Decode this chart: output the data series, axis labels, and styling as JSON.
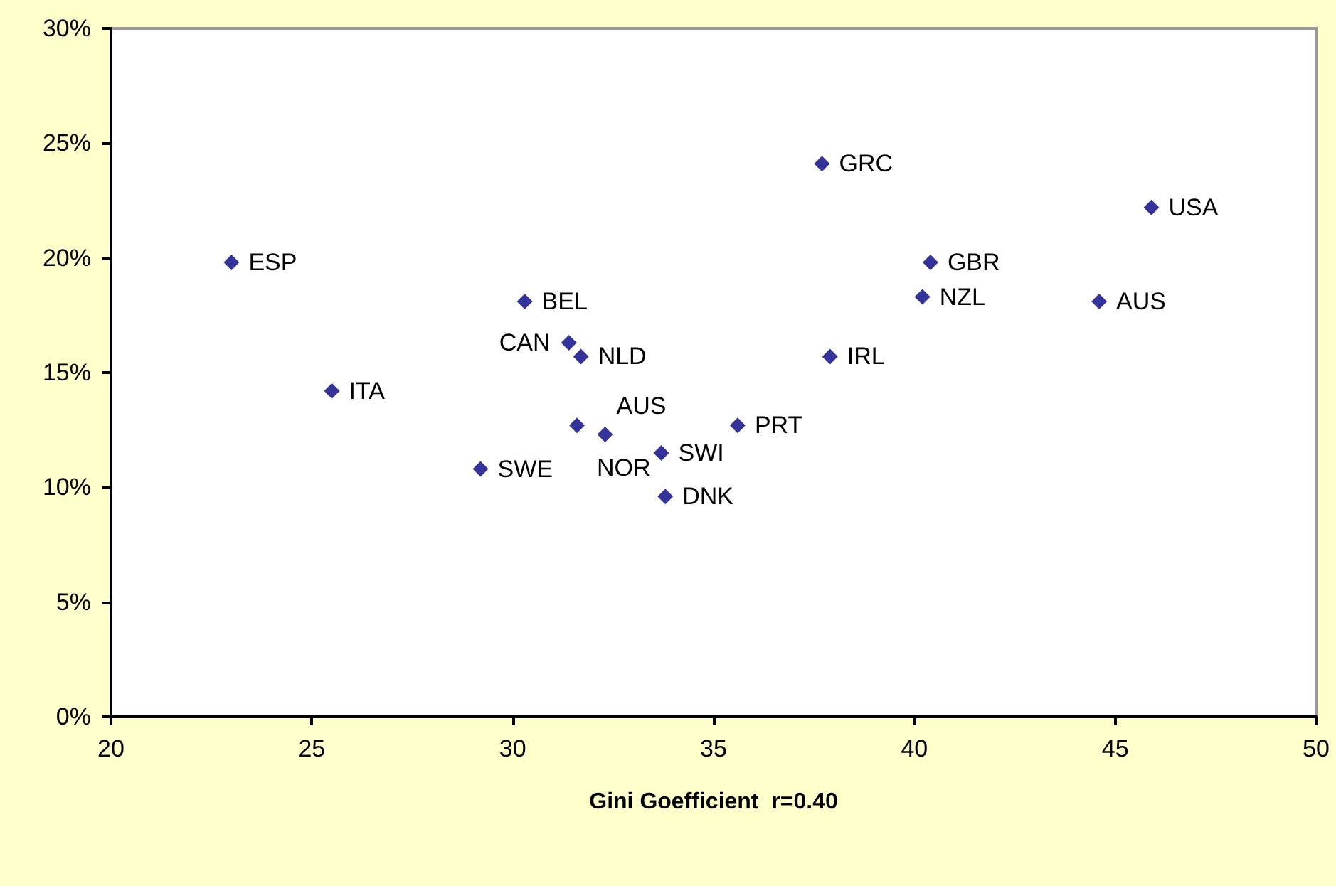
{
  "chart_data": {
    "type": "scatter",
    "xlabel": "Gini Goefficient  r=0.40",
    "x": [
      23.0,
      25.5,
      29.2,
      30.3,
      31.4,
      31.7,
      31.6,
      32.3,
      33.7,
      33.8,
      35.6,
      37.9,
      37.7,
      40.4,
      40.2,
      44.6,
      45.9
    ],
    "values": [
      19.8,
      14.2,
      10.8,
      18.1,
      16.3,
      15.7,
      12.7,
      12.3,
      11.5,
      9.6,
      12.7,
      15.7,
      24.1,
      19.8,
      18.3,
      18.1,
      22.2
    ],
    "color": "#000080",
    "marker": "diamond",
    "grid": false,
    "xlim": [
      20,
      50
    ],
    "xticks": [
      20,
      25,
      30,
      35,
      40,
      45,
      50
    ],
    "ylim": [
      0,
      30
    ],
    "yticks": [
      {
        "value": 0,
        "label": "0%"
      },
      {
        "value": 5,
        "label": "5%"
      },
      {
        "value": 10,
        "label": "10%"
      },
      {
        "value": 15,
        "label": "15%"
      },
      {
        "value": 20,
        "label": "20%"
      },
      {
        "value": 25,
        "label": "25%"
      },
      {
        "value": 30,
        "label": "30%"
      }
    ],
    "annotations": [
      {
        "text": "ESP",
        "x": 23.0,
        "y": 19.8
      },
      {
        "text": "ITA",
        "x": 25.5,
        "y": 14.2
      },
      {
        "text": "AUS",
        "x": 32.3,
        "y": 12.3
      },
      {
        "text": "SWE",
        "x": 29.2,
        "y": 10.8
      },
      {
        "text": "BEL",
        "x": 30.3,
        "y": 18.1
      },
      {
        "text": "CAN",
        "x": 31.4,
        "y": 16.3
      },
      {
        "text": "NLD",
        "x": 31.7,
        "y": 15.7
      },
      {
        "text": "NOR",
        "x": 31.6,
        "y": 12.7
      },
      {
        "text": "DNK",
        "x": 33.8,
        "y": 9.6
      },
      {
        "text": "SWI",
        "x": 33.7,
        "y": 11.5
      },
      {
        "text": "PRT",
        "x": 35.6,
        "y": 12.7
      },
      {
        "text": "IRL",
        "x": 37.9,
        "y": 15.7
      },
      {
        "text": "GRC",
        "x": 37.7,
        "y": 24.1
      },
      {
        "text": "GBR",
        "x": 40.4,
        "y": 19.8
      },
      {
        "text": "NZL",
        "x": 40.2,
        "y": 18.3
      },
      {
        "text": "AUS",
        "x": 44.6,
        "y": 18.1
      },
      {
        "text": "USA",
        "x": 45.9,
        "y": 22.2
      }
    ]
  }
}
